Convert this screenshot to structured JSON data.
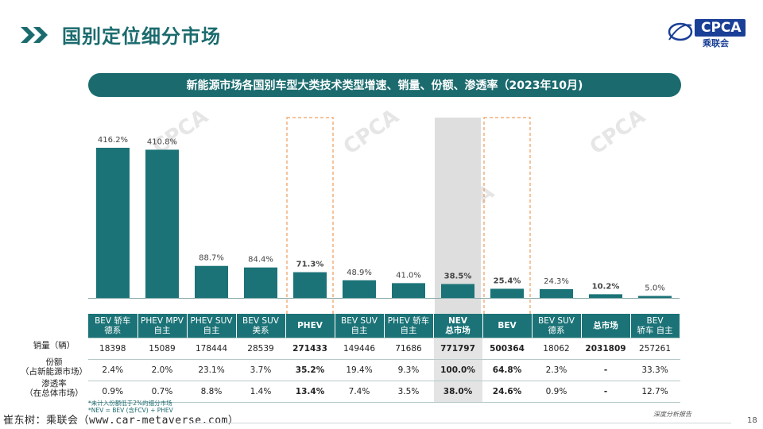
{
  "header": {
    "title": "国别定位细分市场",
    "logo_text": "CPCA",
    "logo_sub": "乘联会",
    "logo_mark": "CPCA"
  },
  "banner": {
    "title": "新能源市场各国别车型大类技术类型增速、销量、份额、渗透率（2023年10月)"
  },
  "colors": {
    "teal": "#1b7377",
    "highlight_box": "#e8873a",
    "nev_shade": "#dedede"
  },
  "chart_data": {
    "type": "bar",
    "title": "新能源市场各国别车型大类技术类型增速、销量、份额、渗透率（2023年10月)",
    "categories": [
      "BEV 轿车 德系",
      "PHEV MPV 自主",
      "PHEV SUV 自主",
      "BEV SUV 美系",
      "PHEV",
      "BEV SUV 自主",
      "PHEV 轿车 自主",
      "NEV 总市场",
      "BEV",
      "BEV SUV 德系",
      "总市场",
      "BEV 轿车 自主"
    ],
    "values": [
      416.2,
      410.8,
      88.7,
      84.4,
      71.3,
      48.9,
      41.0,
      38.5,
      25.4,
      24.3,
      10.2,
      5.0
    ],
    "value_labels": [
      "416.2%",
      "410.8%",
      "88.7%",
      "84.4%",
      "71.3%",
      "48.9%",
      "41.0%",
      "38.5%",
      "25.4%",
      "24.3%",
      "10.2%",
      "5.0%"
    ],
    "bold_labels": [
      false,
      false,
      false,
      false,
      true,
      false,
      false,
      true,
      true,
      false,
      true,
      false
    ],
    "highlighted": [
      "PHEV",
      "BEV"
    ],
    "shaded": [
      "NEV 总市场"
    ],
    "ylim": [
      0,
      450
    ],
    "grid": false,
    "legend": "none"
  },
  "table": {
    "headers": [
      [
        "BEV 轿车",
        "德系"
      ],
      [
        "PHEV MPV",
        "自主"
      ],
      [
        "PHEV SUV",
        "自主"
      ],
      [
        "BEV SUV",
        "美系"
      ],
      [
        "PHEV"
      ],
      [
        "BEV SUV",
        "自主"
      ],
      [
        "PHEV 轿车",
        "自主"
      ],
      [
        "NEV",
        "总市场"
      ],
      [
        "BEV"
      ],
      [
        "BEV SUV",
        "德系"
      ],
      [
        "总市场"
      ],
      [
        "BEV",
        "轿车 自主"
      ]
    ],
    "rows": [
      {
        "label": [
          "销量（辆）"
        ],
        "cells": [
          "18398",
          "15089",
          "178444",
          "28539",
          "271433",
          "149446",
          "71686",
          "771797",
          "500364",
          "18062",
          "2031809",
          "257261"
        ]
      },
      {
        "label": [
          "份额",
          "（占新能源市场）"
        ],
        "cells": [
          "2.4%",
          "2.0%",
          "23.1%",
          "3.7%",
          "35.2%",
          "19.4%",
          "9.3%",
          "100.0%",
          "64.8%",
          "2.3%",
          "-",
          "33.3%"
        ]
      },
      {
        "label": [
          "渗透率",
          "（在总体市场）"
        ],
        "cells": [
          "0.9%",
          "0.7%",
          "8.8%",
          "1.4%",
          "13.4%",
          "7.4%",
          "3.5%",
          "38.0%",
          "24.6%",
          "0.9%",
          "-",
          "12.7%"
        ]
      }
    ],
    "bold_columns": [
      4,
      7,
      8,
      10
    ]
  },
  "notes": {
    "note1": "*未计入份额低于2%的细分市场",
    "note2": "*NEV = BEV (含FCV) + PHEV"
  },
  "footer": {
    "source": "崔东树：乘联会（www.car-metaverse.com）",
    "report_label": "深度分析报告",
    "page_number": "18"
  }
}
